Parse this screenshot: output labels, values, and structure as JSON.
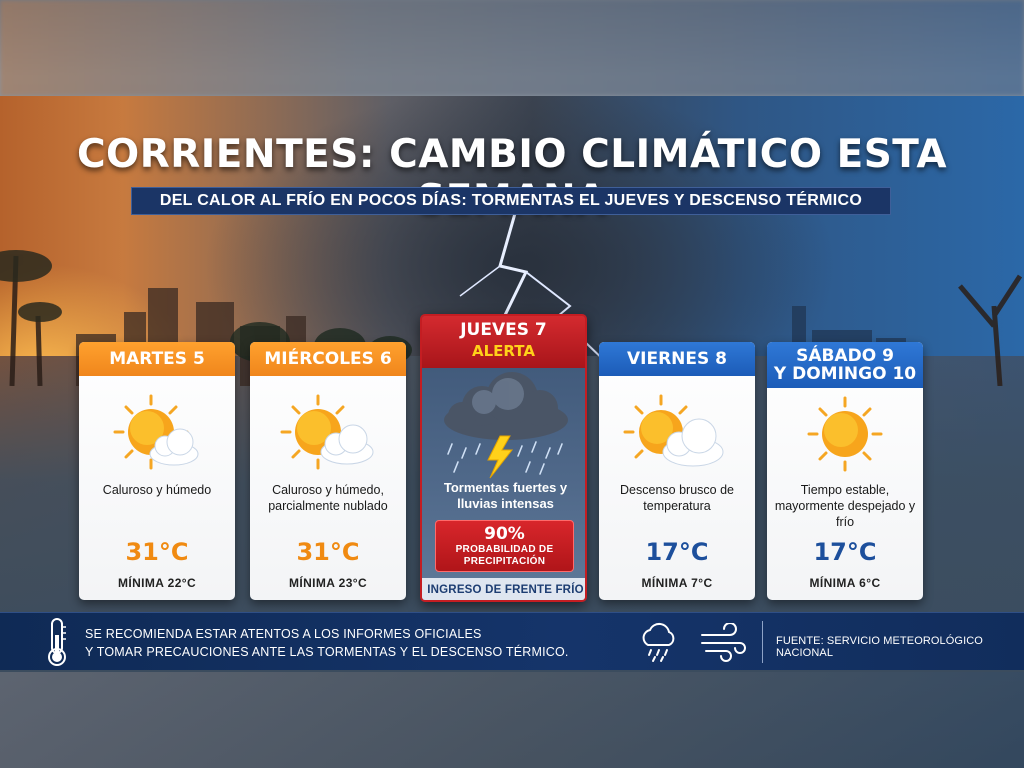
{
  "title": "CORRIENTES: CAMBIO CLIMÁTICO ESTA SEMANA",
  "subtitle": "DEL CALOR AL FRÍO EN POCOS DÍAS: TORMENTAS EL JUEVES Y DESCENSO TÉRMICO",
  "days": [
    {
      "day": "MARTES 5",
      "icon": "sun-cloud-icon",
      "desc": "Caluroso y húmedo",
      "temp": "31°C",
      "min": "MÍNIMA 22°C"
    },
    {
      "day": "MIÉRCOLES 6",
      "icon": "sun-cloud-icon",
      "desc": "Caluroso y húmedo, parcialmente nublado",
      "temp": "31°C",
      "min": "MÍNIMA 23°C"
    },
    {
      "day": "VIERNES 8",
      "icon": "sun-cloud-icon",
      "desc": "Descenso brusco de temperatura",
      "temp": "17°C",
      "min": "MÍNIMA 7°C"
    },
    {
      "day_line1": "SÁBADO 9",
      "day_line2": "Y DOMINGO 10",
      "icon": "sun-icon",
      "desc": "Tiempo estable, mayormente despejado y frío",
      "temp": "17°C",
      "min": "MÍNIMA 6°C"
    }
  ],
  "alert": {
    "day": "JUEVES 7",
    "label": "ALERTA",
    "icon": "storm-cloud-icon",
    "desc": "Tormentas fuertes y lluvias intensas",
    "percent": "90%",
    "prob_label": "PROBABILIDAD DE PRECIPITACIÓN",
    "footer": "INGRESO DE FRENTE FRÍO"
  },
  "bottom": {
    "recommendation_line1": "SE RECOMIENDA ESTAR ATENTOS A LOS INFORMES OFICIALES",
    "recommendation_line2": "Y TOMAR PRECAUCIONES ANTE LAS TORMENTAS Y EL DESCENSO TÉRMICO.",
    "source": "FUENTE: SERVICIO METEOROLÓGICO NACIONAL"
  },
  "colors": {
    "warm_header": "#f0861c",
    "cold_header": "#1c5cb8",
    "alert_red": "#c41d22",
    "alert_yellow": "#ffd11a",
    "bar_navy": "#15346a"
  }
}
